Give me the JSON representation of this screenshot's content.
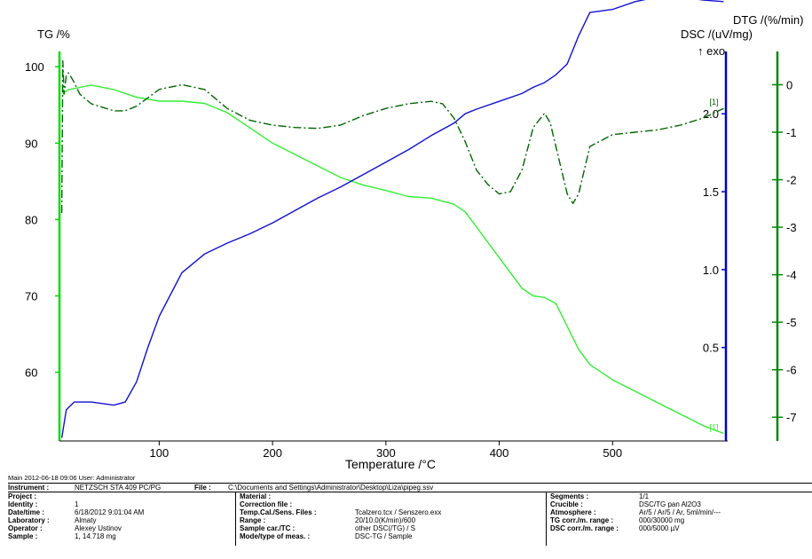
{
  "chart_data": {
    "type": "line",
    "x_axis": {
      "label": "Temperature /°C",
      "ticks": [
        100,
        200,
        300,
        400,
        500
      ],
      "range": [
        12,
        600
      ]
    },
    "y_left": {
      "label": "TG /%",
      "ticks": [
        60,
        70,
        80,
        90,
        100
      ],
      "range": [
        51,
        102
      ],
      "color": "#00c000"
    },
    "y_right_dsc": {
      "label": "DSC /(uV/mg)",
      "exo_label": "↑ exo",
      "ticks": [
        "0.5",
        "1.0",
        "1.5",
        "2.0"
      ],
      "range": [
        -0.1,
        2.4
      ],
      "color": "#1010d0"
    },
    "y_right_dtg": {
      "label": "DTG /(%/min)",
      "ticks": [
        "0",
        "-1",
        "-2",
        "-3",
        "-4",
        "-5",
        "-6",
        "-7"
      ],
      "range": [
        -7.5,
        0.7
      ],
      "color": "#007000"
    },
    "series": [
      {
        "axis": "left",
        "color": "#33ee33",
        "style": "solid",
        "marker": "[1]",
        "x": [
          15,
          20,
          40,
          60,
          80,
          100,
          120,
          140,
          160,
          180,
          200,
          220,
          240,
          260,
          280,
          300,
          320,
          340,
          360,
          370,
          380,
          400,
          420,
          430,
          440,
          450,
          460,
          470,
          480,
          500,
          520,
          540,
          560,
          580,
          598
        ],
        "y": [
          96.5,
          97.0,
          97.6,
          97.0,
          96.0,
          95.5,
          95.5,
          95.2,
          94.0,
          92.0,
          90.0,
          88.5,
          87.0,
          85.5,
          84.5,
          83.8,
          83.0,
          82.8,
          82.0,
          81.0,
          79.0,
          75.0,
          71.0,
          70.0,
          69.8,
          69.0,
          66.0,
          63.0,
          61.0,
          59.0,
          57.5,
          56.0,
          54.5,
          53.0,
          52.0
        ]
      },
      {
        "axis": "dsc",
        "color": "#1010d0",
        "style": "solid",
        "marker": "[1]",
        "x": [
          14,
          18,
          25,
          40,
          60,
          70,
          80,
          90,
          100,
          120,
          140,
          160,
          180,
          200,
          220,
          240,
          260,
          280,
          300,
          320,
          340,
          360,
          370,
          380,
          400,
          420,
          430,
          440,
          450,
          460,
          470,
          480,
          500,
          520,
          540,
          560,
          580,
          598
        ],
        "y": [
          -0.08,
          0.1,
          0.15,
          0.15,
          0.13,
          0.15,
          0.28,
          0.5,
          0.7,
          0.98,
          1.1,
          1.17,
          1.23,
          1.3,
          1.38,
          1.46,
          1.53,
          1.61,
          1.69,
          1.77,
          1.86,
          1.94,
          2.0,
          2.03,
          2.08,
          2.13,
          2.17,
          2.2,
          2.25,
          2.32,
          2.5,
          2.65,
          2.67,
          2.72,
          2.75,
          2.75,
          2.73,
          2.72
        ]
      },
      {
        "axis": "dtg",
        "color": "#006600",
        "style": "dashdot",
        "marker": "[1]",
        "x": [
          14,
          15,
          16,
          18,
          20,
          25,
          30,
          40,
          60,
          70,
          80,
          100,
          120,
          140,
          160,
          180,
          200,
          220,
          240,
          260,
          280,
          300,
          320,
          340,
          350,
          360,
          370,
          380,
          390,
          400,
          410,
          420,
          430,
          440,
          445,
          450,
          460,
          465,
          470,
          480,
          500,
          520,
          540,
          560,
          580,
          598
        ],
        "y": [
          -2.7,
          0.5,
          -0.2,
          0.2,
          0.25,
          0.05,
          -0.2,
          -0.4,
          -0.55,
          -0.55,
          -0.45,
          -0.1,
          0.0,
          -0.1,
          -0.5,
          -0.75,
          -0.85,
          -0.9,
          -0.92,
          -0.85,
          -0.65,
          -0.5,
          -0.4,
          -0.35,
          -0.4,
          -0.7,
          -1.2,
          -1.8,
          -2.1,
          -2.3,
          -2.25,
          -1.8,
          -0.9,
          -0.6,
          -0.8,
          -1.3,
          -2.3,
          -2.5,
          -2.3,
          -1.3,
          -1.05,
          -1.0,
          -0.95,
          -0.85,
          -0.7,
          -0.5
        ]
      }
    ],
    "curve_marker": "[1]"
  },
  "footer": {
    "main_line": "Main   2012-06-18 09:06    User: Administrator",
    "instrument_label": "Instrument :",
    "instrument_value": "NETZSCH STA 409 PC/PG",
    "file_label": "File :",
    "file_value": "C:\\Documents and Settings\\Administrator\\Desktop\\Liza\\pipeg.ssv",
    "col1": [
      {
        "label": "Project :",
        "value": ""
      },
      {
        "label": "Identity :",
        "value": "1"
      },
      {
        "label": "Date/time :",
        "value": "6/18/2012 9:01:04 AM"
      },
      {
        "label": "Laboratory :",
        "value": "Almaty"
      },
      {
        "label": "Operator :",
        "value": "Alexey Ustinov"
      },
      {
        "label": "Sample :",
        "value": "1, 14.718 mg"
      }
    ],
    "col2": [
      {
        "label": "Material :",
        "value": ""
      },
      {
        "label": "Correction file :",
        "value": ""
      },
      {
        "label": "Temp.Cal./Sens. Files :",
        "value": "Tcalzero.tcx / Senszero.exx"
      },
      {
        "label": "Range :",
        "value": "20/10.0(K/min)/600"
      },
      {
        "label": "Sample car./TC :",
        "value": "other DSC(/TG) / S"
      },
      {
        "label": "Mode/type of meas. :",
        "value": "DSC-TG / Sample"
      }
    ],
    "col3": [
      {
        "label": "Segments :",
        "value": "1/1"
      },
      {
        "label": "Crucible :",
        "value": "DSC/TG pan Al2O3"
      },
      {
        "label": "Atmosphere :",
        "value": "Ar/5 / Ar/5 / Ar, 5ml/min/---"
      },
      {
        "label": "TG corr./m. range :",
        "value": "000/30000 mg"
      },
      {
        "label": "DSC corr./m. range :",
        "value": "000/5000 µV"
      }
    ]
  }
}
